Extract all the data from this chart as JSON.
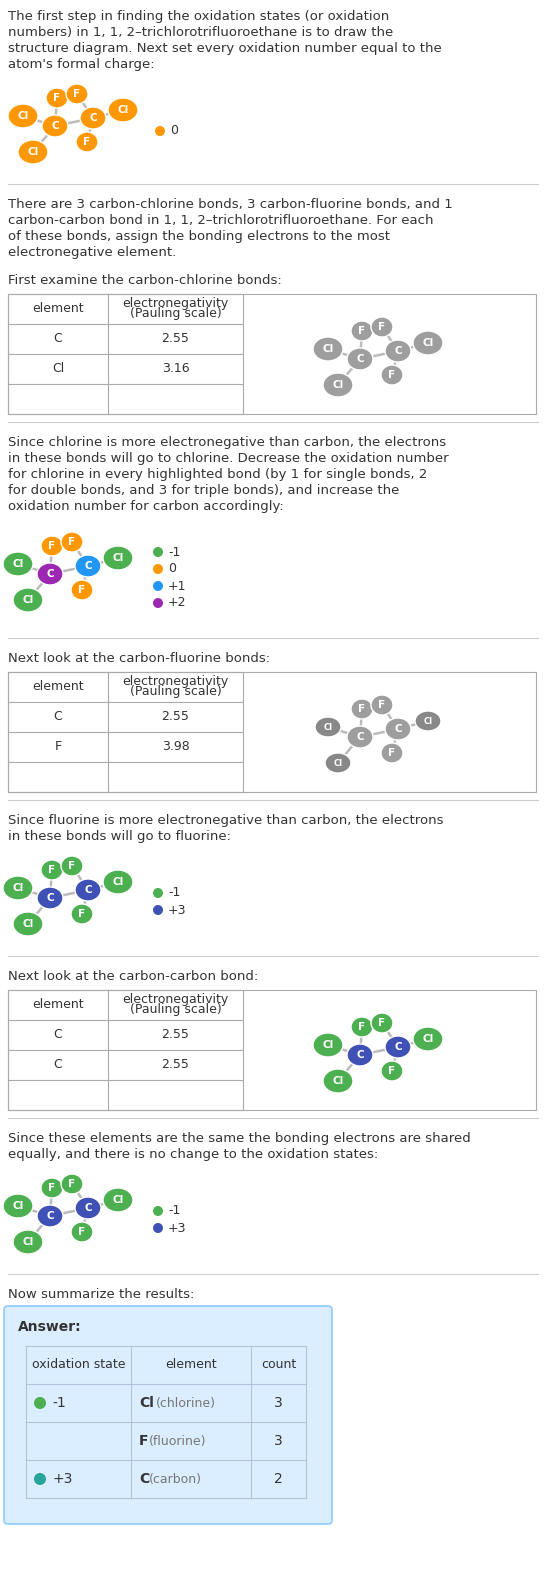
{
  "title_text": "The first step in finding the oxidation states (or oxidation numbers) in 1, 1, 2–trichlorotrifluoroethane is to draw the structure diagram. Next set every oxidation number equal to the atom's formal charge:",
  "para2": "There are 3 carbon-chlorine bonds, 3 carbon-fluorine bonds, and 1 carbon-carbon bond in 1, 1, 2–trichlorotrifluoroethane.  For each of these bonds, assign the bonding electrons to the most electronegative element.",
  "section1_header": "First examine the carbon-chlorine bonds:",
  "section2_header": "Next look at the carbon-fluorine bonds:",
  "section3_header": "Next look at the carbon-carbon bond:",
  "section4_header": "Now summarize the results:",
  "table1": {
    "col1": [
      "element",
      "C",
      "Cl",
      ""
    ],
    "col2": [
      "electronegativity\n(Pauling scale)",
      "2.55",
      "3.16",
      ""
    ]
  },
  "table2": {
    "col1": [
      "element",
      "C",
      "F",
      ""
    ],
    "col2": [
      "electronegativity\n(Pauling scale)",
      "2.55",
      "3.98",
      ""
    ]
  },
  "table3": {
    "col1": [
      "element",
      "C",
      "C",
      ""
    ],
    "col2": [
      "electronegativity\n(Pauling scale)",
      "2.55",
      "2.55",
      ""
    ]
  },
  "after_cl_text": "Since chlorine is more electronegative than carbon, the electrons in these bonds will go to chlorine. Decrease the oxidation number for chlorine in every highlighted bond (by 1 for single bonds, 2 for double bonds, and 3 for triple bonds), and increase the oxidation number for carbon accordingly:",
  "after_f_text": "Since fluorine is more electronegative than carbon, the electrons in these bonds will go to fluorine:",
  "after_cc_text": "Since these elements are the same the bonding electrons are shared equally, and there is no change to the oxidation states:",
  "bg_color": "#ffffff",
  "text_color": "#333333",
  "separator_color": "#cccccc",
  "orange_atom": "#ff9800",
  "green_atom": "#4caf50",
  "gray_atom": "#9e9e9e",
  "blue_atom": "#2196f3",
  "darkblue_atom": "#3f51b5",
  "teal_atom": "#26a69a",
  "purple_atom": "#9c27b0",
  "answer_box_color": "#dbeeff",
  "answer_border_color": "#90caf9",
  "answer_table_headers": [
    "oxidation state",
    "element",
    "count"
  ],
  "answer_rows": [
    [
      "-1",
      "#4caf50",
      "Cl",
      "chlorine",
      "3"
    ],
    [
      "",
      null,
      "F",
      "fluorine",
      "3"
    ],
    [
      "+3",
      "#26a69a",
      "C",
      "carbon",
      "2"
    ]
  ]
}
